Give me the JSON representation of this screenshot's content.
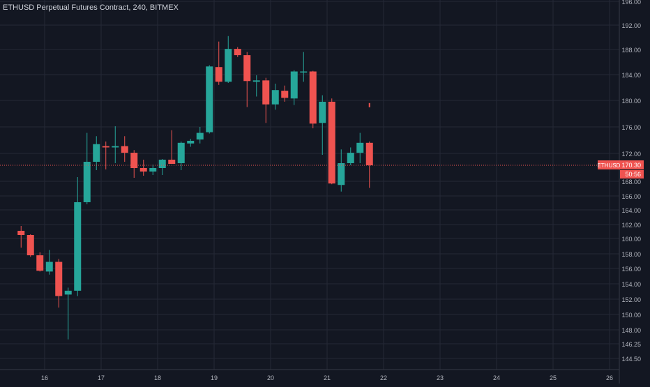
{
  "header": {
    "title": "ETHUSD Perpetual Futures Contract, 240, BITMEX"
  },
  "price_scale": {
    "ticks": [
      "196.00",
      "192.00",
      "188.00",
      "184.00",
      "180.00",
      "176.00",
      "172.00",
      "168.00",
      "166.00",
      "164.00",
      "162.00",
      "160.00",
      "158.00",
      "156.00",
      "154.00",
      "152.00",
      "150.00",
      "148.00",
      "146.25",
      "144.50"
    ],
    "last_price_symbol": "ETHUSD",
    "last_price_label": "170.30",
    "countdown": "50:56"
  },
  "time_axis": {
    "ticks": [
      "16",
      "17",
      "18",
      "19",
      "20",
      "21",
      "22",
      "23",
      "24",
      "25",
      "26"
    ]
  },
  "colors": {
    "background": "#131722",
    "grid": "#242936",
    "up": "#26a69a",
    "down": "#ef5350",
    "text": "#b2b5be",
    "price_line": "#ef5350"
  },
  "chart_data": {
    "type": "candlestick",
    "title": "ETHUSD Perpetual Futures Contract, 240, BITMEX",
    "interval_hours": 4,
    "x_ticks": [
      "16",
      "17",
      "18",
      "19",
      "20",
      "21",
      "22",
      "23",
      "24",
      "25",
      "26"
    ],
    "y_ticks": [
      196,
      192,
      188,
      184,
      180,
      176,
      172,
      168,
      166,
      164,
      162,
      160,
      158,
      156,
      154,
      152,
      150,
      148,
      146.25,
      144.5
    ],
    "last_price": 170.3,
    "candles": [
      {
        "t": "15 12:00",
        "o": 161.1,
        "h": 161.8,
        "l": 158.8,
        "c": 160.5
      },
      {
        "t": "15 16:00",
        "o": 160.5,
        "h": 160.6,
        "l": 157.6,
        "c": 157.8
      },
      {
        "t": "15 20:00",
        "o": 157.8,
        "h": 158.2,
        "l": 155.6,
        "c": 155.7
      },
      {
        "t": "16 00:00",
        "o": 155.6,
        "h": 158.5,
        "l": 155.2,
        "c": 156.9
      },
      {
        "t": "16 04:00",
        "o": 156.9,
        "h": 157.3,
        "l": 150.9,
        "c": 152.4
      },
      {
        "t": "16 08:00",
        "o": 152.6,
        "h": 153.5,
        "l": 146.8,
        "c": 153.1
      },
      {
        "t": "16 12:00",
        "o": 153.1,
        "h": 168.6,
        "l": 152.4,
        "c": 165.1
      },
      {
        "t": "16 16:00",
        "o": 165.1,
        "h": 175.1,
        "l": 164.8,
        "c": 170.8
      },
      {
        "t": "16 20:00",
        "o": 170.8,
        "h": 174.6,
        "l": 169.6,
        "c": 173.4
      },
      {
        "t": "17 00:00",
        "o": 173.1,
        "h": 173.8,
        "l": 169.7,
        "c": 172.9
      },
      {
        "t": "17 04:00",
        "o": 172.9,
        "h": 176.1,
        "l": 170.6,
        "c": 173.1
      },
      {
        "t": "17 08:00",
        "o": 173.1,
        "h": 174.6,
        "l": 170.8,
        "c": 172.1
      },
      {
        "t": "17 12:00",
        "o": 172.1,
        "h": 172.5,
        "l": 168.5,
        "c": 169.9
      },
      {
        "t": "17 16:00",
        "o": 169.9,
        "h": 171.1,
        "l": 168.8,
        "c": 169.4
      },
      {
        "t": "17 20:00",
        "o": 169.4,
        "h": 170.4,
        "l": 168.9,
        "c": 169.9
      },
      {
        "t": "18 00:00",
        "o": 169.9,
        "h": 171.2,
        "l": 168.9,
        "c": 171.1
      },
      {
        "t": "18 04:00",
        "o": 171.1,
        "h": 175.5,
        "l": 170.7,
        "c": 170.5
      },
      {
        "t": "18 08:00",
        "o": 170.6,
        "h": 173.8,
        "l": 169.6,
        "c": 173.6
      },
      {
        "t": "18 12:00",
        "o": 173.5,
        "h": 174.2,
        "l": 173.0,
        "c": 173.9
      },
      {
        "t": "18 16:00",
        "o": 174.1,
        "h": 176.0,
        "l": 173.5,
        "c": 175.1
      },
      {
        "t": "18 20:00",
        "o": 175.2,
        "h": 185.5,
        "l": 175.0,
        "c": 185.3
      },
      {
        "t": "19 00:00",
        "o": 185.2,
        "h": 189.3,
        "l": 182.4,
        "c": 182.9
      },
      {
        "t": "19 04:00",
        "o": 182.9,
        "h": 190.2,
        "l": 182.7,
        "c": 188.1
      },
      {
        "t": "19 08:00",
        "o": 188.1,
        "h": 188.4,
        "l": 186.8,
        "c": 187.1
      },
      {
        "t": "19 12:00",
        "o": 187.1,
        "h": 187.6,
        "l": 179.0,
        "c": 183.0
      },
      {
        "t": "19 16:00",
        "o": 182.9,
        "h": 183.9,
        "l": 180.6,
        "c": 183.1
      },
      {
        "t": "19 20:00",
        "o": 183.1,
        "h": 183.5,
        "l": 176.6,
        "c": 179.4
      },
      {
        "t": "20 00:00",
        "o": 179.4,
        "h": 182.6,
        "l": 178.6,
        "c": 181.6
      },
      {
        "t": "20 04:00",
        "o": 181.5,
        "h": 182.3,
        "l": 179.8,
        "c": 180.4
      },
      {
        "t": "20 08:00",
        "o": 180.3,
        "h": 184.7,
        "l": 179.3,
        "c": 184.5
      },
      {
        "t": "20 12:00",
        "o": 184.4,
        "h": 187.6,
        "l": 182.9,
        "c": 184.5
      },
      {
        "t": "20 16:00",
        "o": 184.5,
        "h": 184.6,
        "l": 175.8,
        "c": 176.5
      },
      {
        "t": "20 20:00",
        "o": 176.6,
        "h": 180.8,
        "l": 171.8,
        "c": 179.8
      },
      {
        "t": "21 00:00",
        "o": 179.8,
        "h": 180.3,
        "l": 167.6,
        "c": 167.7
      },
      {
        "t": "21 04:00",
        "o": 167.5,
        "h": 172.6,
        "l": 166.6,
        "c": 170.6
      },
      {
        "t": "21 08:00",
        "o": 170.6,
        "h": 172.9,
        "l": 170.3,
        "c": 172.1
      },
      {
        "t": "21 12:00",
        "o": 172.1,
        "h": 175.1,
        "l": 170.6,
        "c": 173.6
      },
      {
        "t": "21 16:00",
        "o": 173.6,
        "h": 173.8,
        "l": 167.1,
        "c": 170.3
      }
    ],
    "grid": true
  }
}
